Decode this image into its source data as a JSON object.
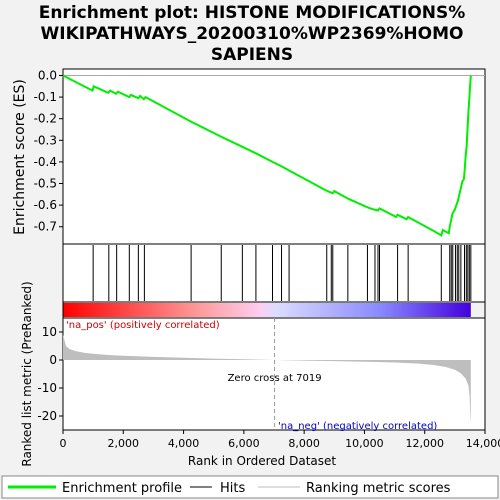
{
  "chart_data": {
    "type": "line",
    "title_lines": [
      "Enrichment plot: HISTONE MODIFICATIONS%",
      "WIKIPATHWAYS_20200310%WP2369%HOMO",
      "SAPIENS"
    ],
    "xlabel": "Rank in Ordered Dataset",
    "top_ylabel": "Enrichment score (ES)",
    "bottom_ylabel": "Ranked list metric (PreRanked)",
    "xlim": [
      0,
      14000
    ],
    "x_ticks": [
      0,
      2000,
      4000,
      6000,
      8000,
      10000,
      12000,
      14000
    ],
    "x_tick_labels": [
      "0",
      "2,000",
      "4,000",
      "6,000",
      "8,000",
      "10,000",
      "12,000",
      "14,000"
    ],
    "es_ylim": [
      -0.78,
      0.03
    ],
    "es_ticks": [
      0.0,
      -0.1,
      -0.2,
      -0.3,
      -0.4,
      -0.5,
      -0.6,
      -0.7
    ],
    "es_tick_labels": [
      "0.0",
      "-0.1",
      "-0.2",
      "-0.3",
      "-0.4",
      "-0.5",
      "-0.6",
      "-0.7"
    ],
    "metric_ylim": [
      -25,
      15
    ],
    "metric_ticks": [
      10,
      0,
      -10,
      -20
    ],
    "metric_tick_labels": [
      "10",
      "0",
      "-10",
      "-20"
    ],
    "zero_cross_label": "Zero cross at 7019",
    "zero_cross_rank": 7019,
    "pos_label": "'na_pos' (positively correlated)",
    "neg_label": "'na_neg' (negatively correlated)",
    "enrichment_profile": {
      "name": "Enrichment profile",
      "color": "#00ee00",
      "x": [
        0,
        980,
        1020,
        1500,
        1560,
        1760,
        1820,
        2200,
        2250,
        2500,
        2560,
        2680,
        2740,
        4200,
        5200,
        5950,
        6400,
        6950,
        7250,
        7500,
        8700,
        8850,
        8950,
        9000,
        9450,
        10100,
        10300,
        10450,
        10500,
        11050,
        11100,
        11400,
        11450,
        12300,
        12550,
        12600,
        12800,
        12830,
        12880,
        12920,
        13000,
        13050,
        13100,
        13150,
        13200,
        13250,
        13300,
        13330,
        13360,
        13390,
        13420,
        13450,
        13480,
        13500,
        13530
      ],
      "y": [
        0.0,
        -0.07,
        -0.05,
        -0.08,
        -0.07,
        -0.085,
        -0.075,
        -0.1,
        -0.09,
        -0.105,
        -0.095,
        -0.11,
        -0.1,
        -0.21,
        -0.28,
        -0.33,
        -0.36,
        -0.4,
        -0.42,
        -0.44,
        -0.53,
        -0.54,
        -0.545,
        -0.535,
        -0.57,
        -0.61,
        -0.62,
        -0.625,
        -0.615,
        -0.655,
        -0.645,
        -0.665,
        -0.655,
        -0.72,
        -0.74,
        -0.715,
        -0.73,
        -0.7,
        -0.67,
        -0.64,
        -0.62,
        -0.6,
        -0.58,
        -0.55,
        -0.52,
        -0.49,
        -0.48,
        -0.43,
        -0.37,
        -0.33,
        -0.25,
        -0.17,
        -0.11,
        -0.06,
        0.0
      ]
    },
    "hits": [
      1000,
      1520,
      1780,
      2200,
      2500,
      2700,
      4250,
      5250,
      5950,
      6400,
      6950,
      7250,
      7500,
      8750,
      8900,
      8950,
      9450,
      10100,
      10350,
      10450,
      10500,
      11100,
      11450,
      12550,
      12830,
      12880,
      12930,
      13020,
      13080,
      13130,
      13200,
      13320,
      13380,
      13430,
      13480,
      13530
    ],
    "hits_label": "Hits",
    "ranking_metric": {
      "name": "Ranking metric scores",
      "color": "#bebebe",
      "x": [
        0,
        100,
        200,
        400,
        700,
        1000,
        1500,
        2000,
        3000,
        4000,
        5000,
        6000,
        7019,
        8000,
        9000,
        10000,
        11000,
        11800,
        12300,
        12700,
        13000,
        13200,
        13350,
        13450,
        13490,
        13510,
        13530
      ],
      "y": [
        9.0,
        5.0,
        4.0,
        3.2,
        2.6,
        2.2,
        1.8,
        1.5,
        1.1,
        0.8,
        0.5,
        0.25,
        0.0,
        -0.2,
        -0.4,
        -0.6,
        -0.9,
        -1.3,
        -1.8,
        -2.5,
        -3.5,
        -4.8,
        -6.5,
        -9.0,
        -13.0,
        -19.0,
        -23.0
      ]
    },
    "colors": {
      "hit_line": "#000000",
      "heat_stops": [
        "#ff0000",
        "#ff9999",
        "#ffccee",
        "#ddddff",
        "#8888ff",
        "#4400dd"
      ],
      "pos_label_color": "#cc0000",
      "neg_label_color": "#0000cc"
    },
    "legend_placement": "bottom"
  }
}
